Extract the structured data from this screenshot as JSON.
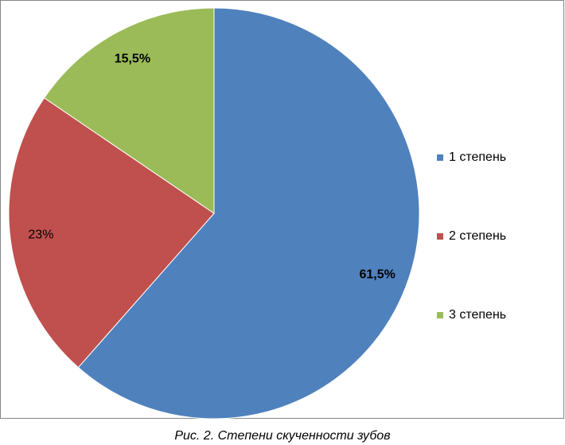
{
  "chart_data": {
    "type": "pie",
    "categories": [
      "1 степень",
      "2 степень",
      "3 степень"
    ],
    "values": [
      61.5,
      23,
      15.5
    ],
    "value_labels": [
      "61,5%",
      "23%",
      "15,5%"
    ],
    "colors": [
      "#4f81bd",
      "#c0504d",
      "#9bbb59"
    ],
    "legend": "right",
    "caption": "Рис. 2. Степени скученности зубов"
  }
}
